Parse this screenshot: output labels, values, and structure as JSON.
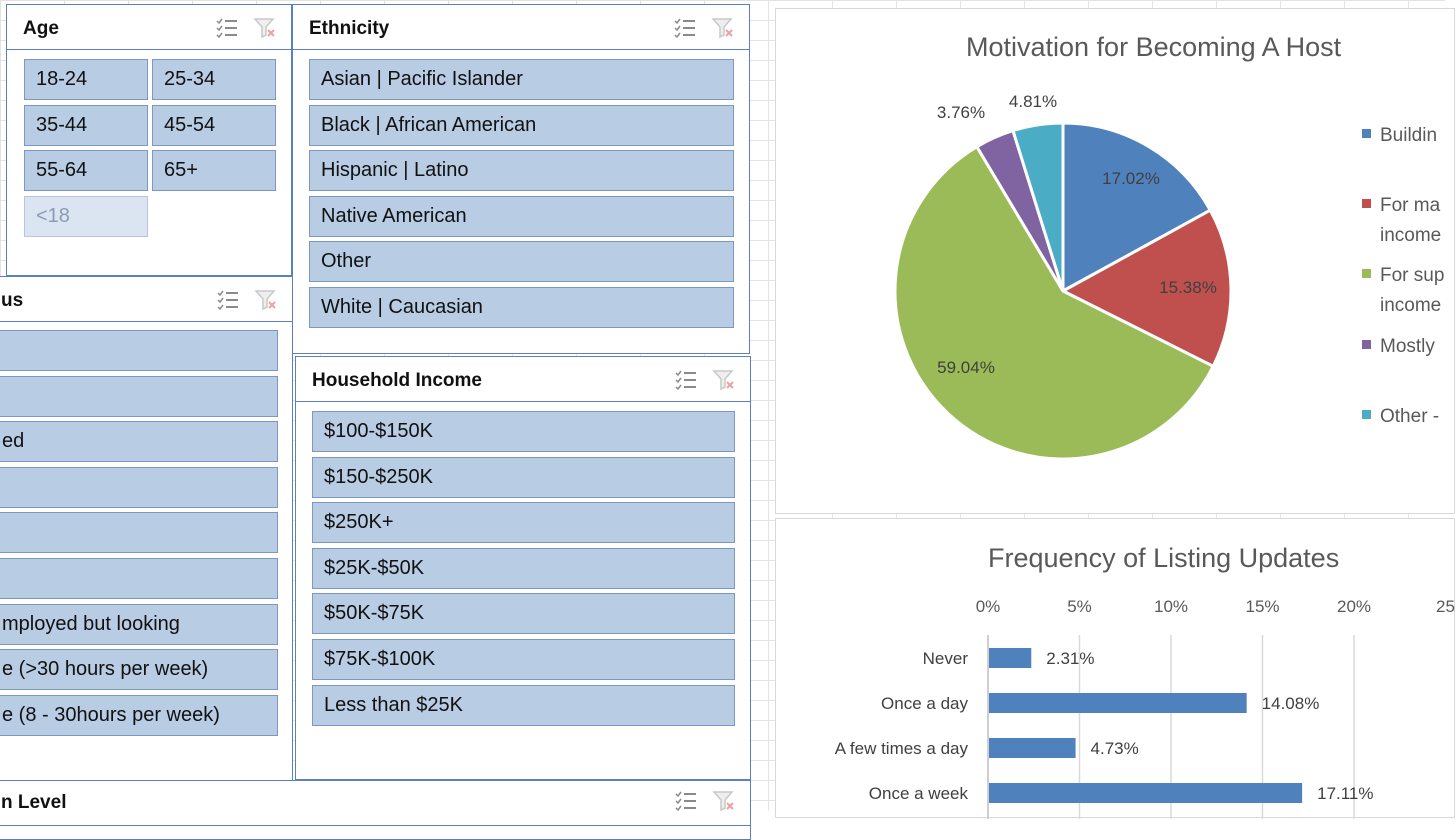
{
  "slicers": {
    "age": {
      "title": "Age",
      "items": [
        "18-24",
        "25-34",
        "35-44",
        "45-54",
        "55-64",
        "65+",
        "<18"
      ]
    },
    "ethnicity": {
      "title": "Ethnicity",
      "items": [
        "Asian | Pacific Islander",
        "Black | African American",
        "Hispanic | Latino",
        "Native American",
        "Other",
        "White | Caucasian"
      ]
    },
    "employment": {
      "title": "us",
      "items": [
        "",
        "",
        "ed",
        "",
        "",
        "",
        "mployed but looking",
        "e (>30 hours per week)",
        "e (8 - 30hours per week)"
      ]
    },
    "income": {
      "title": "Household Income",
      "items": [
        "$100-$150K",
        "$150-$250K",
        "$250K+",
        "$25K-$50K",
        "$50K-$75K",
        "$75K-$100K",
        "Less than $25K"
      ]
    },
    "education": {
      "title": "n Level"
    }
  },
  "icons": {
    "multiselect": "multi-select-icon",
    "clear_filter": "clear-filter-icon"
  },
  "colors": {
    "slicer_item": "#b8cce4",
    "slicer_border": "#5b7fbf",
    "pie": [
      "#4f81bd",
      "#c0504d",
      "#9bbb59",
      "#8064a2",
      "#4bacc6"
    ],
    "bar": "#4f81bd"
  },
  "chart_data": [
    {
      "type": "pie",
      "title": "Motivation for Becoming A Host",
      "series": [
        {
          "name": "Buildin",
          "value": 17.02,
          "label": "17.02%"
        },
        {
          "name": "For ma income",
          "value": 15.38,
          "label": "15.38%"
        },
        {
          "name": "For sup income",
          "value": 59.04,
          "label": "59.04%"
        },
        {
          "name": "Mostly",
          "value": 3.76,
          "label": "3.76%"
        },
        {
          "name": "Other -",
          "value": 4.81,
          "label": "4.81%"
        }
      ],
      "legend": {
        "position": "right",
        "entries": [
          [
            "Buildin"
          ],
          [
            "For ma",
            "income"
          ],
          [
            "For sup",
            "income"
          ],
          [
            "Mostly"
          ],
          [
            "Other -"
          ]
        ]
      }
    },
    {
      "type": "bar",
      "orientation": "horizontal",
      "title": "Frequency of Listing Updates",
      "categories": [
        "Never",
        "Once a day",
        "A few times a day",
        "Once a week"
      ],
      "values": [
        2.31,
        14.08,
        4.73,
        17.11
      ],
      "value_labels": [
        "2.31%",
        "14.08%",
        "4.73%",
        "17.11%"
      ],
      "x_ticks": [
        "0%",
        "5%",
        "10%",
        "15%",
        "20%",
        "25"
      ],
      "x_tick_values": [
        0,
        5,
        10,
        15,
        20,
        25
      ],
      "xlim": [
        0,
        25
      ],
      "grid": true,
      "axis_position": "top"
    }
  ]
}
